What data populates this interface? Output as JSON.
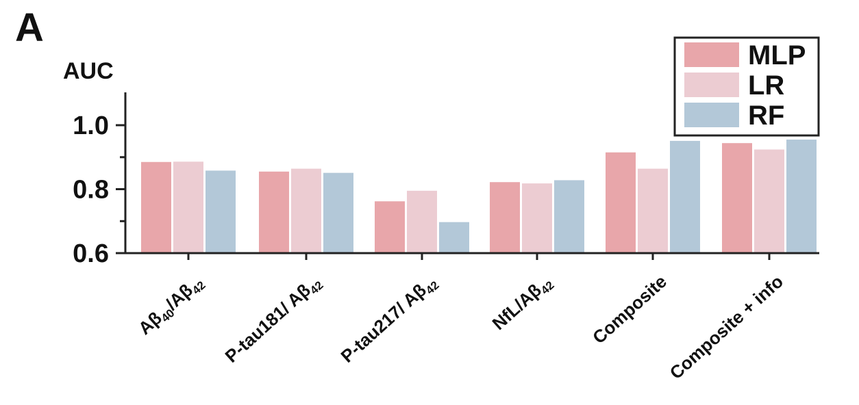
{
  "panel_label": "A",
  "chart_data": {
    "type": "bar",
    "title": "",
    "xlabel": "",
    "ylabel": "AUC",
    "ylim": [
      0.6,
      1.1
    ],
    "yticks": [
      "0.6",
      "0.8",
      "1.0"
    ],
    "categories": [
      {
        "main": "Aβ",
        "parts": [
          {
            "t": "Aβ"
          },
          {
            "t": "40",
            "sub": true
          },
          {
            "t": "/Aβ"
          },
          {
            "t": "42",
            "sub": true
          }
        ]
      },
      {
        "parts": [
          {
            "t": "P-tau181/ Aβ"
          },
          {
            "t": "42",
            "sub": true
          }
        ]
      },
      {
        "parts": [
          {
            "t": "P-tau217/ Aβ"
          },
          {
            "t": "42",
            "sub": true
          }
        ]
      },
      {
        "parts": [
          {
            "t": "NfL/Aβ"
          },
          {
            "t": "42",
            "sub": true
          }
        ]
      },
      {
        "parts": [
          {
            "t": "Composite"
          }
        ]
      },
      {
        "parts": [
          {
            "t": "Composite + info"
          }
        ]
      }
    ],
    "series": [
      {
        "name": "MLP",
        "color": "#e8a6aa",
        "values": [
          0.885,
          0.855,
          0.762,
          0.822,
          0.915,
          0.944
        ]
      },
      {
        "name": "LR",
        "color": "#ecccd2",
        "values": [
          0.886,
          0.864,
          0.795,
          0.818,
          0.864,
          0.924
        ]
      },
      {
        "name": "RF",
        "color": "#b3c8d8",
        "values": [
          0.858,
          0.851,
          0.697,
          0.828,
          0.951,
          0.955
        ]
      }
    ],
    "legend_position": "top-right",
    "grid": false
  }
}
